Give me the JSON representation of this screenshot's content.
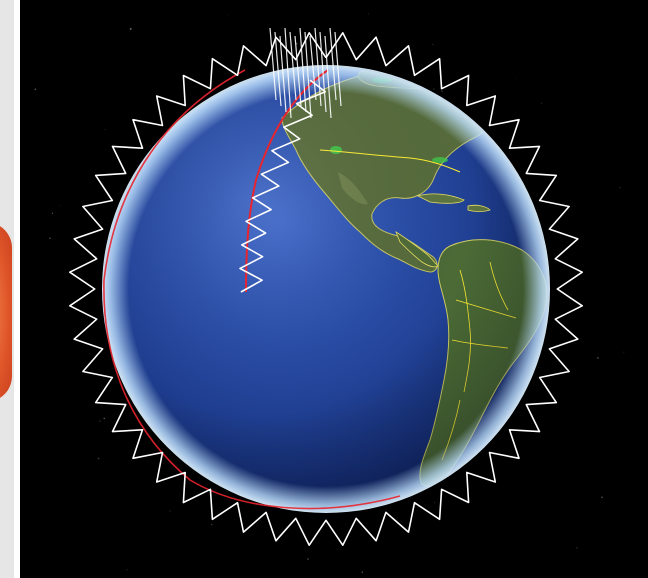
{
  "scene": {
    "view": "3d-globe",
    "background_color": "#000000",
    "side_panel_color": "#e6e6e6",
    "side_orb_color": "#e0562a",
    "globe": {
      "ocean_color": "#2a4fa8",
      "land_color": "#4a6a3a",
      "atmosphere_color": "#bfe0ff",
      "border_color": "#ffee33"
    },
    "overlays": {
      "ground_track_color": "#e8242e",
      "footprint_color": "#ffffff"
    }
  }
}
